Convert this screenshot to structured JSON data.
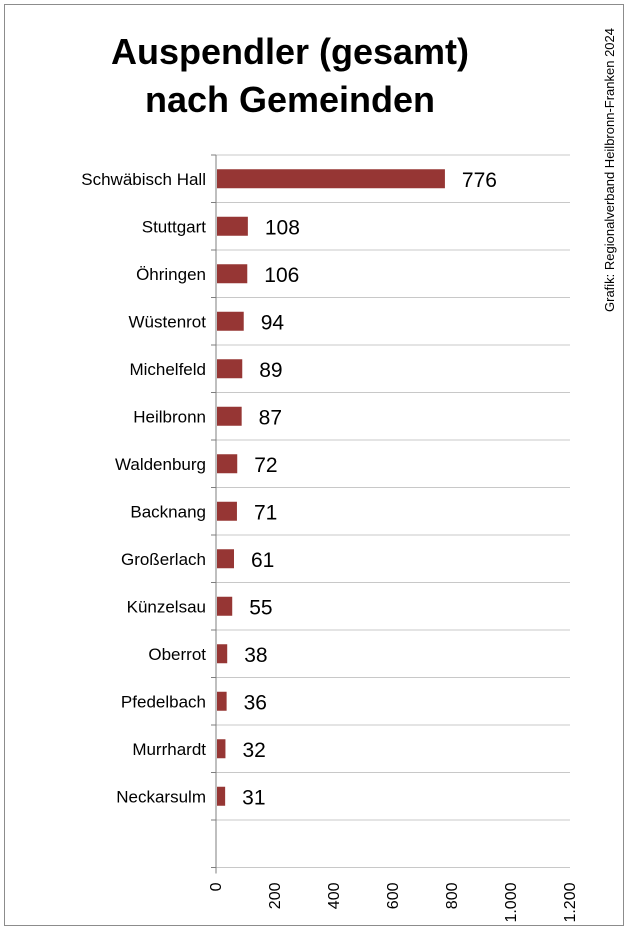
{
  "title_line1": "Auspendler (gesamt)",
  "title_line2": "nach Gemeinden",
  "credit": "Grafik: Regionalverband Heilbronn-Franken 2024",
  "colors": {
    "bar": "#963634",
    "grid": "#c8c8c8",
    "axis": "#7f7f7f"
  },
  "chart_data": {
    "type": "bar",
    "orientation": "horizontal",
    "title": "Auspendler (gesamt) nach Gemeinden",
    "categories": [
      "Schwäbisch Hall",
      "Stuttgart",
      "Öhringen",
      "Wüstenrot",
      "Michelfeld",
      "Heilbronn",
      "Waldenburg",
      "Backnang",
      "Großerlach",
      "Künzelsau",
      "Oberrot",
      "Pfedelbach",
      "Murrhardt",
      "Neckarsulm"
    ],
    "values": [
      776,
      108,
      106,
      94,
      89,
      87,
      72,
      71,
      61,
      55,
      38,
      36,
      32,
      31
    ],
    "xlim": [
      0,
      1200
    ],
    "xticks": [
      0,
      200,
      400,
      600,
      800,
      1000,
      1200
    ],
    "xtick_labels": [
      "0",
      "200",
      "400",
      "600",
      "800",
      "1.000",
      "1.200"
    ],
    "grid": true,
    "legend": "none",
    "data_labels": true
  }
}
